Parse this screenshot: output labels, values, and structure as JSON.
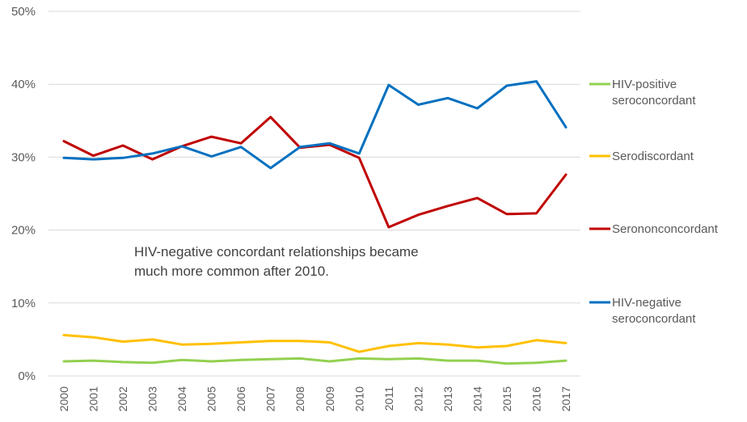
{
  "chart_data": {
    "type": "line",
    "x": [
      "2000",
      "2001",
      "2002",
      "2003",
      "2004",
      "2005",
      "2006",
      "2007",
      "2008",
      "2009",
      "2010",
      "2011",
      "2012",
      "2013",
      "2014",
      "2015",
      "2016",
      "2017"
    ],
    "ylim": [
      0,
      50
    ],
    "yticks": [
      "0%",
      "10%",
      "20%",
      "30%",
      "40%",
      "50%"
    ],
    "ytick_values": [
      0,
      10,
      20,
      30,
      40,
      50
    ],
    "grid": true,
    "legend_position": "right",
    "annotation": [
      "HIV-negative concordant relationships became",
      "much more common after 2010."
    ],
    "series": [
      {
        "name_lines": [
          "HIV-positive",
          "seroconcordant"
        ],
        "color": "#92d050",
        "values": [
          2.0,
          2.1,
          1.9,
          1.8,
          2.2,
          2.0,
          2.2,
          2.3,
          2.4,
          2.0,
          2.4,
          2.3,
          2.4,
          2.1,
          2.1,
          1.7,
          1.8,
          2.1
        ]
      },
      {
        "name_lines": [
          "Serodiscordant"
        ],
        "color": "#ffc000",
        "values": [
          5.6,
          5.3,
          4.7,
          5.0,
          4.3,
          4.4,
          4.6,
          4.8,
          4.8,
          4.6,
          3.3,
          4.1,
          4.5,
          4.3,
          3.9,
          4.1,
          4.9,
          4.5
        ]
      },
      {
        "name_lines": [
          "Serononconcordant"
        ],
        "color": "#c00000",
        "values": [
          32.2,
          30.2,
          31.6,
          29.7,
          31.5,
          32.8,
          31.9,
          35.5,
          31.3,
          31.7,
          29.9,
          20.4,
          22.1,
          23.3,
          24.4,
          22.2,
          22.3,
          27.6
        ]
      },
      {
        "name_lines": [
          "HIV-negative",
          "seroconcordant"
        ],
        "color": "#0070c0",
        "values": [
          29.9,
          29.7,
          29.9,
          30.5,
          31.5,
          30.1,
          31.4,
          28.5,
          31.4,
          31.9,
          30.5,
          39.9,
          37.2,
          38.1,
          36.7,
          39.8,
          40.4,
          34.1
        ]
      }
    ]
  }
}
